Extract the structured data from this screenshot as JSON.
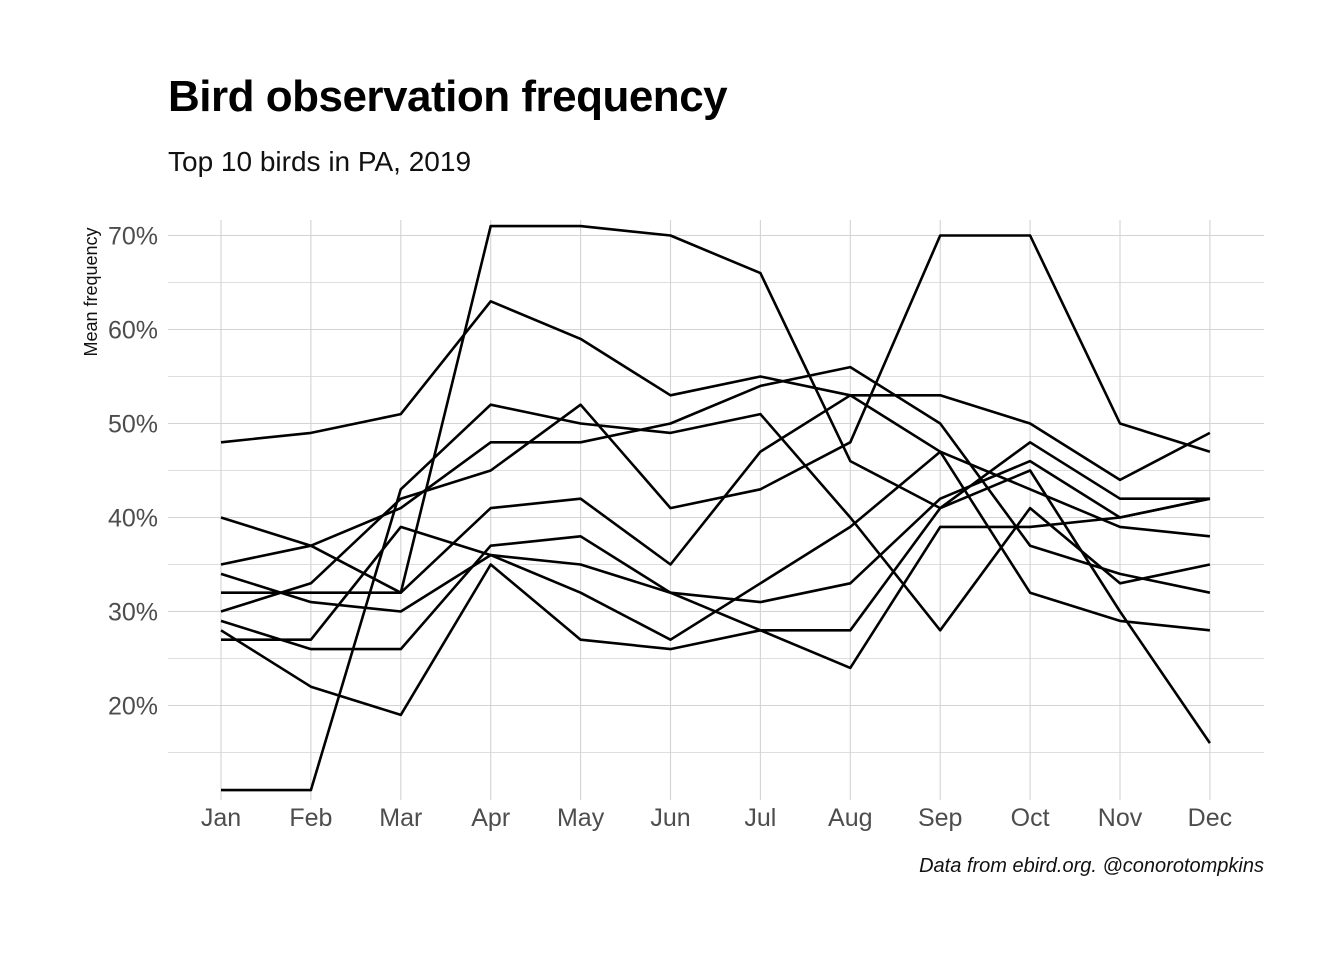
{
  "chart_data": {
    "type": "line",
    "title": "Bird observation frequency",
    "subtitle": "Top 10 birds in PA, 2019",
    "caption": "Data from ebird.org. @conorotompkins",
    "xlabel": "",
    "ylabel": "Mean frequency",
    "categories": [
      "Jan",
      "Feb",
      "Mar",
      "Apr",
      "May",
      "Jun",
      "Jul",
      "Aug",
      "Sep",
      "Oct",
      "Nov",
      "Dec"
    ],
    "ylim": [
      10,
      71.5
    ],
    "yticks": [
      20,
      30,
      40,
      50,
      60,
      70
    ],
    "ytick_labels": [
      "20%",
      "30%",
      "40%",
      "50%",
      "60%",
      "70%"
    ],
    "y_unit": "%",
    "grid": true,
    "legend": "none",
    "series": [
      {
        "values": [
          48,
          49,
          51,
          63,
          59,
          53,
          55,
          53,
          53,
          50,
          44,
          49
        ]
      },
      {
        "values": [
          40,
          37,
          32,
          71,
          71,
          70,
          66,
          46,
          41,
          48,
          42,
          42
        ]
      },
      {
        "values": [
          11,
          11,
          43,
          52,
          50,
          49,
          51,
          40,
          28,
          41,
          33,
          35
        ]
      },
      {
        "values": [
          35,
          37,
          41,
          48,
          48,
          50,
          54,
          56,
          50,
          37,
          34,
          32
        ]
      },
      {
        "values": [
          30,
          33,
          42,
          45,
          52,
          41,
          43,
          48,
          70,
          70,
          50,
          47
        ]
      },
      {
        "values": [
          32,
          32,
          32,
          41,
          42,
          35,
          47,
          53,
          47,
          43,
          39,
          38
        ]
      },
      {
        "values": [
          34,
          31,
          30,
          36,
          35,
          32,
          31,
          33,
          42,
          46,
          40,
          42
        ]
      },
      {
        "values": [
          27,
          27,
          39,
          36,
          32,
          27,
          33,
          39,
          47,
          32,
          29,
          28
        ]
      },
      {
        "values": [
          29,
          26,
          26,
          37,
          38,
          32,
          28,
          24,
          39,
          39,
          40,
          42
        ]
      },
      {
        "values": [
          28,
          22,
          19,
          35,
          27,
          26,
          28,
          28,
          41,
          45,
          30,
          16
        ]
      }
    ],
    "colors": {
      "line": "#000000",
      "grid": "#d3d3d3",
      "tick_text": "#4d4d4d"
    }
  }
}
